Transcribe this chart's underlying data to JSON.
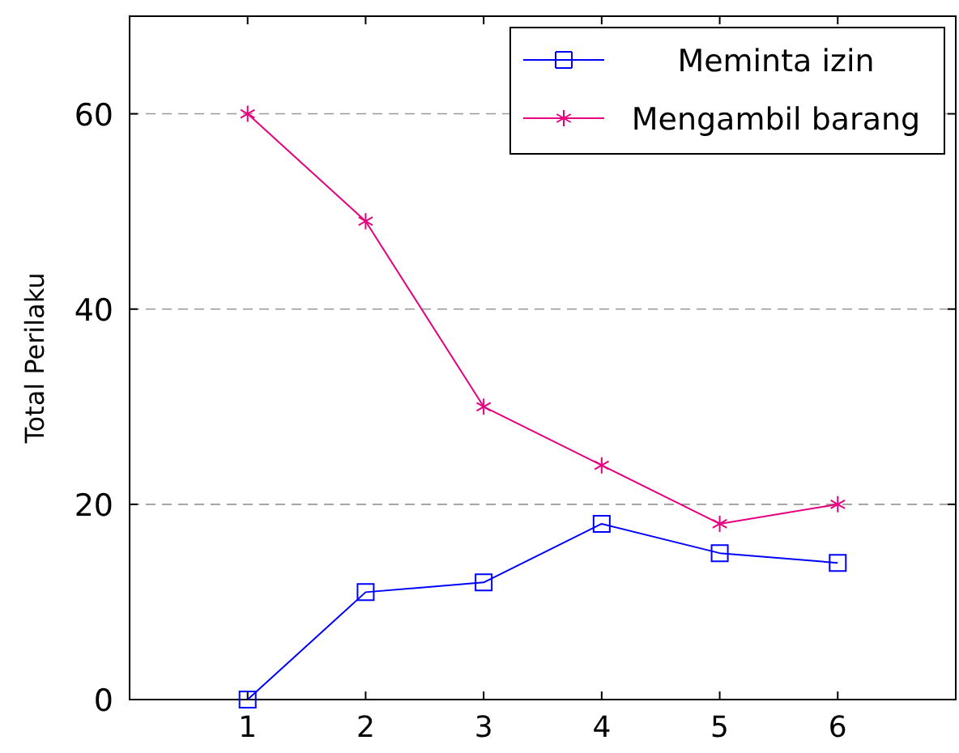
{
  "chart_data": {
    "type": "line",
    "ylabel": "Total Perilaku",
    "x": [
      1,
      2,
      3,
      4,
      5,
      6
    ],
    "xlim": [
      0,
      7
    ],
    "xticks": [
      1,
      2,
      3,
      4,
      5,
      6
    ],
    "ylim": [
      0,
      70
    ],
    "yticks": [
      0,
      20,
      40,
      60
    ],
    "grid": "y",
    "legend": "top right",
    "series": [
      {
        "name": "Meminta izin",
        "color": "#0000ff",
        "marker": "square",
        "values": [
          0,
          11,
          12,
          18,
          15,
          14
        ]
      },
      {
        "name": "Mengambil barang",
        "color": "#e6007e",
        "marker": "cross",
        "values": [
          60,
          49,
          30,
          24,
          18,
          20
        ]
      }
    ]
  }
}
